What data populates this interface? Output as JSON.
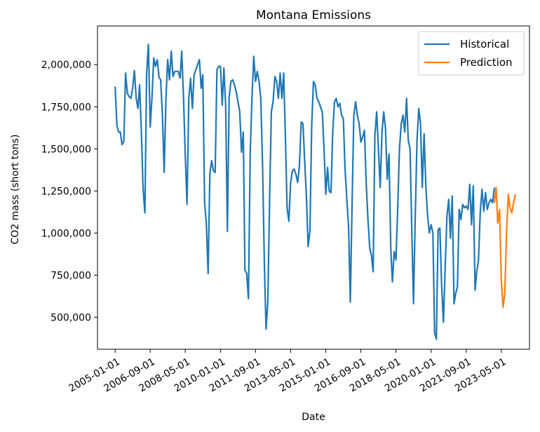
{
  "chart_data": {
    "type": "line",
    "title": "Montana Emissions",
    "xlabel": "Date",
    "ylabel": "CO2 mass (short tons)",
    "xlim": [
      "2004-03-01",
      "2024-09-01"
    ],
    "ylim": [
      310000,
      2230000
    ],
    "x_ticks": [
      "2005-01-01",
      "2006-09-01",
      "2008-05-01",
      "2010-01-01",
      "2011-09-01",
      "2013-05-01",
      "2015-01-01",
      "2016-09-01",
      "2018-05-01",
      "2020-01-01",
      "2021-09-01",
      "2023-05-01"
    ],
    "y_ticks": [
      500000,
      750000,
      1000000,
      1250000,
      1500000,
      1750000,
      2000000
    ],
    "y_tick_labels": [
      "500,000",
      "750,000",
      "1,000,000",
      "1,250,000",
      "1,500,000",
      "1,750,000",
      "2,000,000"
    ],
    "grid": false,
    "legend_position": "top-right",
    "series": [
      {
        "name": "Historical",
        "color": "#1f77b4",
        "start": "2005-01-01",
        "frequency": "monthly",
        "values": [
          1870000,
          1640000,
          1600000,
          1600000,
          1525000,
          1545000,
          1950000,
          1830000,
          1810000,
          1800000,
          1860000,
          1965000,
          1800000,
          1740000,
          1880000,
          1600000,
          1260000,
          1120000,
          1950000,
          2120000,
          1630000,
          1800000,
          2040000,
          1990000,
          2030000,
          1925000,
          1910000,
          1700000,
          1360000,
          1800000,
          2030000,
          1910000,
          2080000,
          1930000,
          1960000,
          1960000,
          1960000,
          1920000,
          2080000,
          1800000,
          1460000,
          1170000,
          1800000,
          1920000,
          1740000,
          1940000,
          1970000,
          2000000,
          2030000,
          1860000,
          1940000,
          1180000,
          1060000,
          760000,
          1350000,
          1430000,
          1370000,
          1360000,
          1970000,
          1990000,
          1990000,
          1760000,
          1980000,
          1760000,
          1010000,
          1810000,
          1900000,
          1910000,
          1880000,
          1840000,
          1780000,
          1720000,
          1480000,
          1600000,
          780000,
          760000,
          610000,
          1480000,
          1800000,
          2050000,
          1900000,
          1960000,
          1900000,
          1800000,
          1400000,
          820000,
          430000,
          590000,
          1180000,
          1720000,
          1780000,
          1930000,
          1900000,
          1800000,
          1950000,
          1800000,
          1950000,
          1550000,
          1150000,
          1070000,
          1300000,
          1370000,
          1380000,
          1350000,
          1300000,
          1400000,
          1660000,
          1650000,
          1420000,
          1200000,
          920000,
          1010000,
          1630000,
          1900000,
          1880000,
          1800000,
          1780000,
          1750000,
          1720000,
          1500000,
          1230000,
          1390000,
          1250000,
          1240000,
          1600000,
          1780000,
          1800000,
          1750000,
          1770000,
          1700000,
          1680000,
          1380000,
          1200000,
          1030000,
          590000,
          1180000,
          1700000,
          1780000,
          1700000,
          1650000,
          1540000,
          1570000,
          1610000,
          1300000,
          1080000,
          910000,
          870000,
          770000,
          1580000,
          1720000,
          1500000,
          1270000,
          1600000,
          1720000,
          1620000,
          1320000,
          1470000,
          900000,
          710000,
          890000,
          840000,
          1150000,
          1500000,
          1650000,
          1700000,
          1600000,
          1800000,
          1550000,
          1500000,
          1000000,
          580000,
          1100000,
          1550000,
          1740000,
          1650000,
          1270000,
          1590000,
          1280000,
          1100000,
          1000000,
          1050000,
          1000000,
          410000,
          370000,
          1020000,
          1030000,
          690000,
          470000,
          800000,
          1100000,
          1200000,
          970000,
          1220000,
          580000,
          640000,
          680000,
          1140000,
          1080000,
          1170000,
          1150000,
          1160000,
          1140000,
          1290000,
          1050000,
          1280000,
          660000,
          770000,
          840000,
          1120000,
          1260000,
          1130000,
          1240000,
          1140000,
          1180000,
          1200000,
          1180000,
          1270000
        ]
      },
      {
        "name": "Prediction",
        "color": "#ff7f0e",
        "start": "2023-01-01",
        "frequency": "monthly",
        "values": [
          1180000,
          1270000,
          1060000,
          1140000,
          720000,
          560000,
          640000,
          1010000,
          1230000,
          1150000,
          1120000,
          1180000,
          1230000
        ]
      }
    ]
  }
}
